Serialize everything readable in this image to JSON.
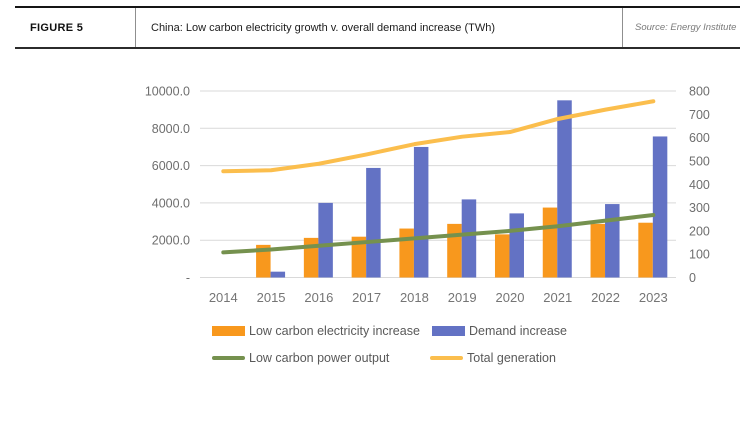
{
  "header": {
    "figure_label": "FIGURE 5",
    "title": "China: Low carbon electricity growth v. overall demand increase (TWh)",
    "source": "Source: Energy Institute"
  },
  "colors": {
    "orange": "#F8981D",
    "blue": "#6372C4",
    "green": "#75914E",
    "yellow": "#FBBE4D",
    "gridline": "#D9D9D9",
    "axis_text": "#6E6E6E",
    "legend_text": "#595959"
  },
  "chart_data": {
    "type": "combo",
    "title": "China: Low carbon electricity growth v. overall demand increase (TWh)",
    "categories": [
      "2014",
      "2015",
      "2016",
      "2017",
      "2018",
      "2019",
      "2020",
      "2021",
      "2022",
      "2023"
    ],
    "series": [
      {
        "name": "Low carbon electricity increase",
        "type": "bar",
        "axis": "right",
        "color": "#F8981D",
        "values": [
          0,
          140,
          170,
          175,
          210,
          230,
          185,
          300,
          230,
          235
        ]
      },
      {
        "name": "Demand increase",
        "type": "bar",
        "axis": "right",
        "color": "#6372C4",
        "values": [
          0,
          25,
          320,
          470,
          560,
          335,
          275,
          760,
          315,
          605
        ]
      },
      {
        "name": "Low carbon power output",
        "type": "line",
        "axis": "left",
        "color": "#75914E",
        "values": [
          1350,
          1500,
          1700,
          1900,
          2100,
          2300,
          2500,
          2750,
          3050,
          3350
        ]
      },
      {
        "name": "Total generation",
        "type": "line",
        "axis": "left",
        "color": "#FBBE4D",
        "values": [
          5700,
          5750,
          6100,
          6600,
          7150,
          7550,
          7800,
          8500,
          9000,
          9450
        ]
      }
    ],
    "left_axis": {
      "min": 0,
      "max": 10000,
      "tick_step": 2000,
      "labels": [
        "10000.0",
        "8000.0",
        "6000.0",
        "4000.0",
        "2000.0",
        "-"
      ]
    },
    "right_axis": {
      "min": 0,
      "max": 800,
      "tick_step": 100,
      "labels": [
        "800",
        "700",
        "600",
        "500",
        "400",
        "300",
        "200",
        "100",
        "0"
      ]
    },
    "grid": true,
    "legend_position": "bottom"
  }
}
